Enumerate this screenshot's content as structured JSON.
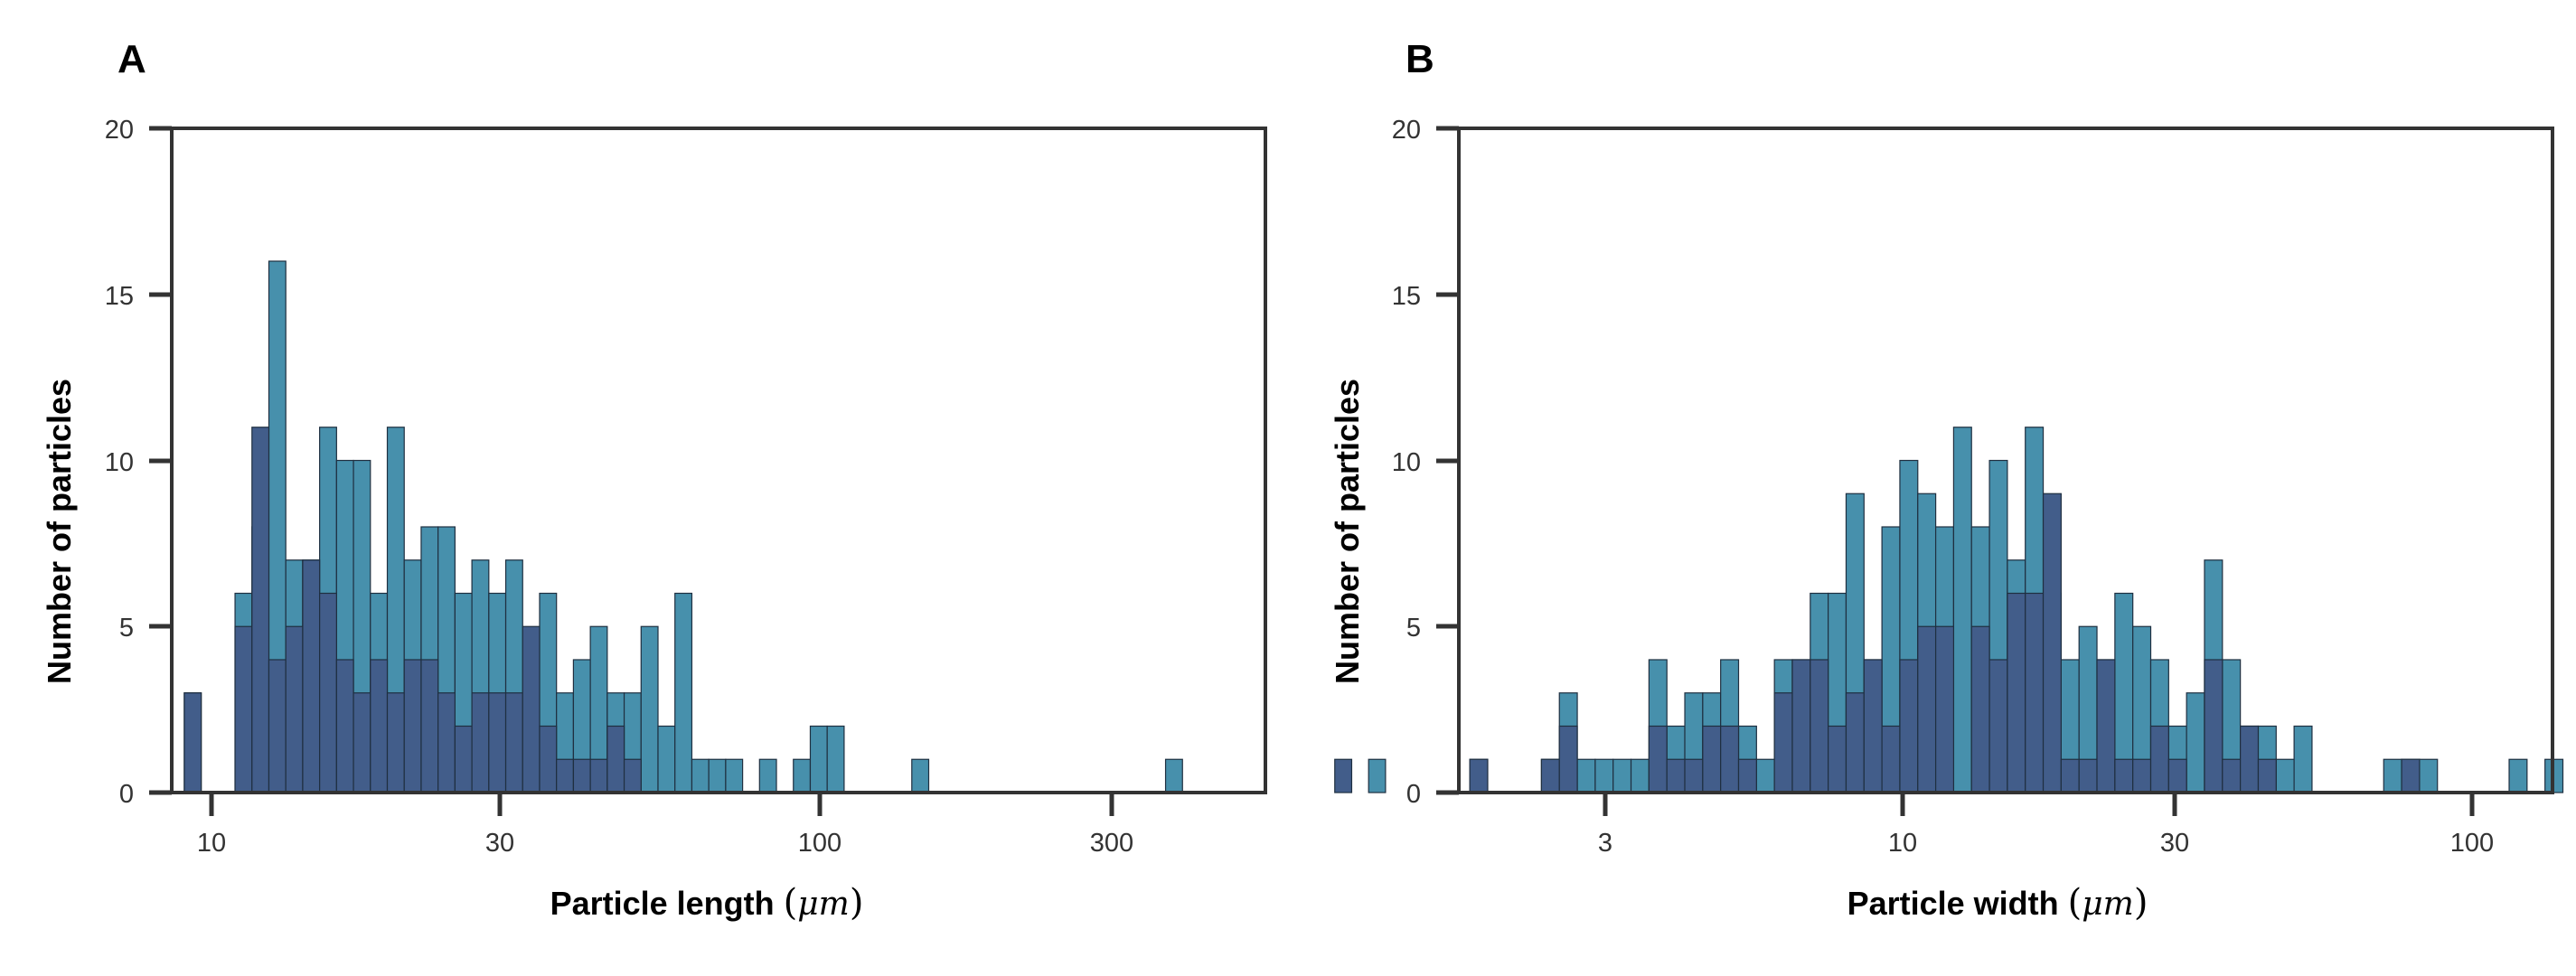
{
  "chart_data": [
    {
      "panel": "A",
      "type": "bar",
      "xlabel_text": "Particle length",
      "xlabel_unit": "μm",
      "ylabel": "Number of particles",
      "xscale": "log10",
      "xlim": [
        8.2,
        520
      ],
      "ylim": [
        0,
        20
      ],
      "xticks": [
        10,
        30,
        100,
        300
      ],
      "yticks": [
        0,
        5,
        10,
        15,
        20
      ],
      "bin_edges_start": 8.6,
      "bin_ratio": 1.0663,
      "series": [
        {
          "role": "total",
          "color": "#4790AC",
          "values": [
            3,
            0,
            0,
            6,
            8,
            16,
            7,
            7,
            11,
            10,
            10,
            6,
            11,
            7,
            8,
            8,
            6,
            7,
            6,
            7,
            3,
            6,
            3,
            4,
            5,
            3,
            3,
            5,
            2,
            6,
            1,
            1,
            1,
            0,
            1,
            0,
            1,
            2,
            2,
            0,
            0,
            0,
            0,
            1,
            0,
            0,
            0,
            0,
            0,
            0,
            0,
            0,
            0,
            0,
            0,
            0,
            0,
            0,
            1,
            0,
            0,
            0,
            0,
            0,
            0,
            0,
            0,
            0,
            0,
            0,
            1,
            0,
            0
          ]
        },
        {
          "role": "subset",
          "color": "#425D8A",
          "values": [
            3,
            0,
            0,
            5,
            11,
            4,
            5,
            7,
            6,
            4,
            3,
            4,
            3,
            4,
            4,
            3,
            2,
            3,
            3,
            3,
            5,
            2,
            1,
            1,
            1,
            2,
            1,
            0,
            0,
            0,
            0,
            0,
            0,
            0,
            0,
            0,
            0,
            0,
            0,
            0,
            0,
            0,
            0,
            0,
            0,
            0,
            0,
            0,
            0,
            0,
            0,
            0,
            0,
            0,
            0,
            0,
            0,
            0,
            0,
            0,
            0,
            0,
            0,
            0,
            0,
            0,
            0,
            0,
            1,
            0,
            0,
            0,
            0
          ]
        }
      ]
    },
    {
      "panel": "B",
      "type": "bar",
      "xlabel_text": "Particle width",
      "xlabel_unit": "μm",
      "ylabel": "Number of particles",
      "xscale": "log10",
      "xlim": [
        1.55,
        128
      ],
      "ylim": [
        0,
        20
      ],
      "xticks": [
        3,
        10,
        30,
        100
      ],
      "yticks": [
        0,
        5,
        10,
        15,
        20
      ],
      "bin_edges_start": 1.62,
      "bin_ratio": 1.075,
      "series": [
        {
          "role": "total",
          "color": "#4790AC",
          "values": [
            1,
            0,
            0,
            0,
            1,
            3,
            1,
            1,
            1,
            1,
            4,
            2,
            3,
            3,
            4,
            2,
            1,
            4,
            4,
            6,
            6,
            9,
            4,
            8,
            10,
            9,
            8,
            11,
            8,
            10,
            7,
            11,
            6,
            4,
            5,
            4,
            6,
            5,
            4,
            2,
            3,
            7,
            4,
            2,
            2,
            1,
            2,
            0,
            0,
            0,
            0,
            1,
            1,
            1,
            0,
            0,
            0,
            0,
            1,
            0,
            1,
            0,
            0,
            0,
            0,
            0,
            0,
            0,
            1
          ]
        },
        {
          "role": "subset",
          "color": "#425D8A",
          "values": [
            1,
            0,
            0,
            0,
            1,
            2,
            0,
            0,
            0,
            0,
            2,
            1,
            1,
            2,
            2,
            1,
            0,
            3,
            4,
            4,
            2,
            3,
            4,
            2,
            4,
            5,
            5,
            0,
            5,
            4,
            6,
            6,
            9,
            1,
            1,
            4,
            1,
            1,
            2,
            1,
            0,
            4,
            1,
            2,
            1,
            0,
            0,
            0,
            0,
            0,
            0,
            0,
            1,
            0,
            0,
            0,
            0,
            0,
            0,
            0,
            0,
            0,
            0,
            0,
            0,
            0,
            0,
            0,
            1
          ]
        }
      ]
    }
  ],
  "panels": [
    {
      "label": "A",
      "ytitle": "Number of particles",
      "xtitle_text": "Particle length",
      "xtitle_unit": "μm",
      "yticks": [
        "0",
        "5",
        "10",
        "15",
        "20"
      ],
      "xticks": [
        "10",
        "30",
        "100",
        "300"
      ]
    },
    {
      "label": "B",
      "ytitle": "Number of particles",
      "xtitle_text": "Particle width",
      "xtitle_unit": "μm",
      "yticks": [
        "0",
        "5",
        "10",
        "15",
        "20"
      ],
      "xticks": [
        "3",
        "10",
        "30",
        "100"
      ]
    }
  ]
}
